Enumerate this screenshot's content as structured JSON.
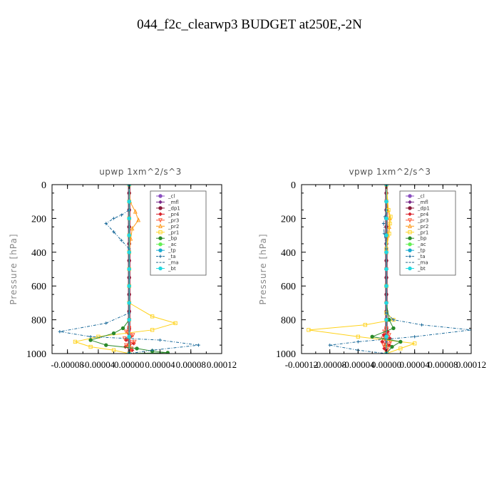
{
  "figure": {
    "title": "044_f2c_clearwp3  BUDGET at250E,-2N"
  },
  "chart_data": [
    {
      "type": "line",
      "title": "upwp   1xm^2/s^3",
      "ylabel": "Pressure [hPa]",
      "xlabel": "",
      "xlim": [
        -0.0001,
        0.00012
      ],
      "ylim": [
        1000,
        0
      ],
      "y_inverted": true,
      "xticks": [
        -8e-05,
        -4e-05,
        0.0,
        4e-05,
        8e-05,
        0.00012
      ],
      "xtick_labels": [
        "-0.00008",
        "-0.00004",
        "0.00000",
        "0.00004",
        "0.00008",
        "0.00012"
      ],
      "yticks": [
        0,
        200,
        400,
        600,
        800,
        1000
      ],
      "ytick_labels": [
        "0",
        "200",
        "400",
        "600",
        "800",
        "1000"
      ],
      "legend_position": "top-right",
      "series": [
        {
          "name": "_cl",
          "color": "#8a4fc0",
          "marker": "circle",
          "x": [
            0,
            0,
            0,
            0,
            0,
            0,
            0,
            0,
            0,
            0,
            0
          ],
          "y": [
            0,
            100,
            200,
            300,
            400,
            500,
            600,
            700,
            800,
            900,
            1000
          ]
        },
        {
          "name": "_mfl",
          "color": "#7a2a8a",
          "marker": "diamond",
          "x": [
            0,
            0,
            0,
            0,
            0,
            0,
            0,
            0,
            0,
            0,
            0
          ],
          "y": [
            0,
            100,
            200,
            300,
            400,
            500,
            600,
            700,
            800,
            900,
            1000
          ]
        },
        {
          "name": "_dp1",
          "color": "#8b1a3a",
          "marker": "circle",
          "x": [
            0,
            0,
            0,
            0,
            0,
            0,
            0,
            0,
            0,
            0,
            0,
            0,
            0,
            0,
            0,
            0,
            0,
            0,
            0,
            0,
            0
          ],
          "y": [
            0,
            50,
            100,
            150,
            200,
            250,
            300,
            350,
            400,
            450,
            500,
            550,
            600,
            650,
            700,
            750,
            800,
            850,
            900,
            950,
            1000
          ]
        },
        {
          "name": "_pr4",
          "color": "#d8202a",
          "marker": "diamond",
          "x": [
            0,
            0,
            0,
            0,
            0,
            0,
            0,
            0,
            0,
            0,
            0,
            -1e-06,
            2e-06,
            -4e-06,
            6e-06,
            -5e-06,
            4e-06,
            0.0
          ],
          "y": [
            0,
            100,
            200,
            300,
            400,
            500,
            600,
            700,
            800,
            840,
            860,
            880,
            900,
            920,
            940,
            960,
            980,
            1000
          ]
        },
        {
          "name": "_pr3",
          "color": "#ff5533",
          "marker": "triangle-down",
          "x": [
            0,
            0,
            0,
            0,
            0,
            0,
            0,
            0,
            0,
            0,
            -4e-06,
            5e-06,
            -6e-06,
            7e-06,
            -4e-06,
            3e-06,
            0.0
          ],
          "y": [
            0,
            100,
            200,
            300,
            400,
            500,
            600,
            700,
            800,
            850,
            870,
            890,
            910,
            930,
            950,
            970,
            1000
          ]
        },
        {
          "name": "_pr2",
          "color": "#ff9a1a",
          "marker": "triangle",
          "x": [
            0,
            1e-06,
            8e-06,
            1.2e-05,
            4e-06,
            2e-06,
            0,
            0,
            0,
            0,
            0,
            0
          ],
          "y": [
            0,
            100,
            160,
            210,
            260,
            320,
            400,
            600,
            800,
            900,
            950,
            1000
          ]
        },
        {
          "name": "_pr1",
          "color": "#ffd21a",
          "marker": "square",
          "x": [
            0,
            0,
            0,
            0,
            0,
            0,
            0,
            0,
            3e-05,
            6e-05,
            3e-05,
            -4e-05,
            -7e-05,
            -5e-05,
            -2e-05,
            0
          ],
          "y": [
            0,
            100,
            200,
            300,
            400,
            500,
            600,
            700,
            780,
            820,
            860,
            900,
            930,
            960,
            980,
            1000
          ]
        },
        {
          "name": "_bp",
          "color": "#2a8a2a",
          "marker": "circle",
          "x": [
            0,
            0,
            0,
            0,
            0,
            0,
            0,
            0,
            0,
            -8e-06,
            -2e-05,
            -5e-05,
            -3e-05,
            1e-05,
            3e-05,
            5e-05,
            0
          ],
          "y": [
            0,
            100,
            200,
            300,
            400,
            500,
            600,
            700,
            800,
            850,
            880,
            920,
            950,
            970,
            985,
            995,
            1000
          ]
        },
        {
          "name": "_ac",
          "color": "#66ee55",
          "marker": "circle",
          "x": [
            0,
            0,
            0,
            0,
            0,
            0,
            0,
            0,
            0,
            0,
            0
          ],
          "y": [
            0,
            100,
            200,
            300,
            400,
            500,
            600,
            700,
            800,
            900,
            1000
          ]
        },
        {
          "name": "_tp",
          "color": "#1aaad0",
          "marker": "circle",
          "x": [
            0,
            0,
            0,
            0,
            0,
            0,
            0,
            0,
            0,
            0,
            0
          ],
          "y": [
            0,
            100,
            200,
            300,
            400,
            500,
            600,
            700,
            800,
            900,
            1000
          ]
        },
        {
          "name": "_ta",
          "color": "#1a6a9a",
          "marker": "plus",
          "x": [
            0,
            0,
            -1e-05,
            -2e-05,
            -3e-05,
            -2e-05,
            -1e-05,
            0,
            0,
            0,
            -3e-05,
            -9e-05,
            -5e-05,
            4e-05,
            9e-05,
            3e-05,
            0.0
          ],
          "y": [
            0,
            150,
            180,
            200,
            230,
            280,
            330,
            380,
            500,
            760,
            820,
            870,
            900,
            920,
            950,
            980,
            1000
          ]
        },
        {
          "name": "_ma",
          "color": "#2a6a8a",
          "marker": "none",
          "x": [
            0,
            0,
            0,
            0,
            0,
            0,
            0,
            0,
            0,
            0,
            0
          ],
          "y": [
            0,
            100,
            200,
            300,
            400,
            500,
            600,
            700,
            800,
            900,
            1000
          ]
        },
        {
          "name": "_bt",
          "color": "#22d8e0",
          "marker": "circle",
          "x": [
            0,
            0,
            0,
            0,
            0,
            0,
            0,
            0,
            0,
            0,
            0
          ],
          "y": [
            0,
            100,
            200,
            300,
            400,
            500,
            600,
            700,
            800,
            900,
            1000
          ]
        }
      ]
    },
    {
      "type": "line",
      "title": "vpwp   1xm^2/s^3",
      "ylabel": "Pressure [hPa]",
      "xlabel": "",
      "xlim": [
        -0.00012,
        0.00012
      ],
      "ylim": [
        1000,
        0
      ],
      "y_inverted": true,
      "xticks": [
        -0.00012,
        -8e-05,
        -4e-05,
        0.0,
        4e-05,
        8e-05,
        0.00012
      ],
      "xtick_labels": [
        "-0.00012",
        "-0.00008",
        "-0.00004",
        "0.00000",
        "0.00004",
        "0.00008",
        "0.00012"
      ],
      "yticks": [
        0,
        200,
        400,
        600,
        800,
        1000
      ],
      "ytick_labels": [
        "0",
        "200",
        "400",
        "600",
        "800",
        "1000"
      ],
      "legend_position": "top-right",
      "series": [
        {
          "name": "_cl",
          "color": "#8a4fc0",
          "marker": "circle",
          "x": [
            0,
            0,
            0,
            0,
            0,
            0,
            0,
            0,
            0,
            0,
            0
          ],
          "y": [
            0,
            100,
            200,
            300,
            400,
            500,
            600,
            700,
            800,
            900,
            1000
          ]
        },
        {
          "name": "_mfl",
          "color": "#7a2a8a",
          "marker": "diamond",
          "x": [
            0,
            0,
            0,
            0,
            0,
            0,
            0,
            0,
            0,
            0,
            0
          ],
          "y": [
            0,
            100,
            200,
            300,
            400,
            500,
            600,
            700,
            800,
            900,
            1000
          ]
        },
        {
          "name": "_dp1",
          "color": "#8b1a3a",
          "marker": "circle",
          "x": [
            0,
            0,
            0,
            0,
            0,
            0,
            0,
            0,
            0,
            0,
            0,
            0,
            0,
            0,
            0,
            0,
            0,
            0,
            0,
            0,
            0
          ],
          "y": [
            0,
            50,
            100,
            150,
            200,
            250,
            300,
            350,
            400,
            450,
            500,
            550,
            600,
            650,
            700,
            750,
            800,
            850,
            900,
            950,
            1000
          ]
        },
        {
          "name": "_pr4",
          "color": "#d8202a",
          "marker": "diamond",
          "x": [
            0,
            0,
            0,
            0,
            0,
            0,
            0,
            0,
            0,
            0,
            2e-06,
            -4e-06,
            5e-06,
            -6e-06,
            4e-06,
            -3e-06,
            0.0
          ],
          "y": [
            0,
            100,
            200,
            300,
            400,
            500,
            600,
            700,
            800,
            850,
            870,
            890,
            910,
            930,
            950,
            970,
            1000
          ]
        },
        {
          "name": "_pr3",
          "color": "#ff5533",
          "marker": "triangle-down",
          "x": [
            0,
            0,
            0,
            0,
            0,
            0,
            0,
            0,
            0,
            0,
            -3e-06,
            4e-06,
            -5e-06,
            6e-06,
            -4e-06,
            2e-06,
            0.0
          ],
          "y": [
            0,
            100,
            200,
            300,
            400,
            500,
            600,
            700,
            800,
            850,
            870,
            890,
            910,
            930,
            950,
            970,
            1000
          ]
        },
        {
          "name": "_pr2",
          "color": "#ff9a1a",
          "marker": "triangle",
          "x": [
            0,
            2e-06,
            5e-06,
            4e-06,
            2e-06,
            0,
            0,
            0,
            0,
            0,
            0
          ],
          "y": [
            0,
            150,
            200,
            250,
            300,
            400,
            600,
            800,
            900,
            950,
            1000
          ]
        },
        {
          "name": "_pr1",
          "color": "#ffd21a",
          "marker": "square",
          "x": [
            0,
            3e-06,
            6e-06,
            5e-06,
            4e-06,
            0,
            0,
            0,
            1e-05,
            -3e-05,
            -0.00011,
            -4e-05,
            4e-05,
            2e-05,
            0
          ],
          "y": [
            0,
            150,
            190,
            230,
            290,
            380,
            600,
            760,
            800,
            830,
            860,
            900,
            940,
            970,
            1000
          ]
        },
        {
          "name": "_bp",
          "color": "#2a8a2a",
          "marker": "circle",
          "x": [
            0,
            0,
            0,
            0,
            0,
            0,
            0,
            0,
            4e-06,
            1e-05,
            -2e-05,
            2e-05,
            8e-06,
            0
          ],
          "y": [
            0,
            100,
            200,
            300,
            400,
            500,
            600,
            700,
            800,
            850,
            900,
            930,
            960,
            1000
          ]
        },
        {
          "name": "_ac",
          "color": "#66ee55",
          "marker": "circle",
          "x": [
            0,
            0,
            0,
            0,
            0,
            0,
            0,
            0,
            0,
            0,
            0
          ],
          "y": [
            0,
            100,
            200,
            300,
            400,
            500,
            600,
            700,
            800,
            900,
            1000
          ]
        },
        {
          "name": "_tp",
          "color": "#1aaad0",
          "marker": "circle",
          "x": [
            0,
            0,
            0,
            0,
            0,
            0,
            0,
            0,
            0,
            0,
            0
          ],
          "y": [
            0,
            100,
            200,
            300,
            400,
            500,
            600,
            700,
            800,
            900,
            1000
          ]
        },
        {
          "name": "_ta",
          "color": "#1a6a9a",
          "marker": "plus",
          "x": [
            0,
            0,
            -2e-06,
            -4e-06,
            -3e-06,
            0,
            0,
            0,
            1e-05,
            5e-05,
            0.00012,
            4e-05,
            -4e-05,
            -8e-05,
            -4e-05,
            0.0
          ],
          "y": [
            0,
            150,
            190,
            230,
            290,
            380,
            600,
            760,
            800,
            830,
            860,
            900,
            930,
            950,
            980,
            1000
          ]
        },
        {
          "name": "_ma",
          "color": "#2a6a8a",
          "marker": "none",
          "x": [
            0,
            0,
            0,
            0,
            0,
            0,
            0,
            0,
            0,
            0,
            0
          ],
          "y": [
            0,
            100,
            200,
            300,
            400,
            500,
            600,
            700,
            800,
            900,
            1000
          ]
        },
        {
          "name": "_bt",
          "color": "#22d8e0",
          "marker": "circle",
          "x": [
            0,
            0,
            0,
            0,
            0,
            0,
            0,
            0,
            0,
            0,
            0
          ],
          "y": [
            0,
            100,
            200,
            300,
            400,
            500,
            600,
            700,
            800,
            900,
            1000
          ]
        }
      ]
    }
  ]
}
